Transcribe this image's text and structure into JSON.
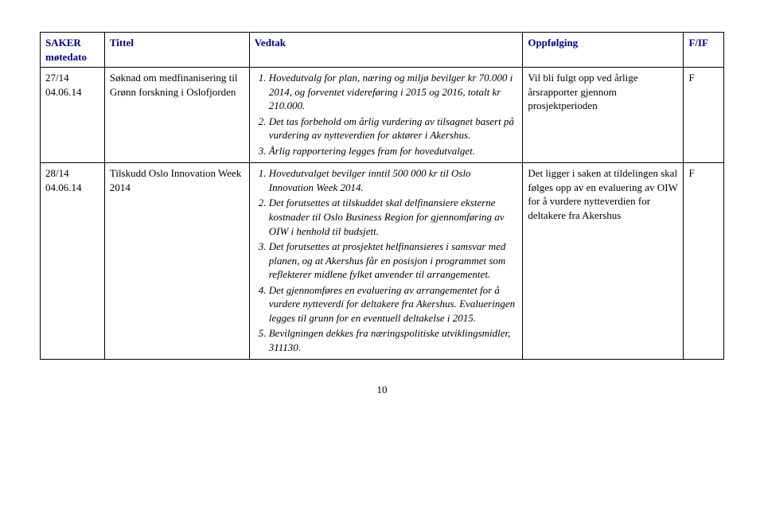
{
  "headers": {
    "saker": "SAKER møtedato",
    "tittel": "Tittel",
    "vedtak": "Vedtak",
    "oppfolging": "Oppfølging",
    "fif": "F/IF"
  },
  "rows": [
    {
      "saker": "27/14 04.06.14",
      "tittel": "Søknad om medfinanisering til Grønn forskning i Oslofjorden",
      "vedtak": [
        "Hovedutvalg for plan, næring og miljø bevilger kr 70.000 i 2014, og forventet videreføring i 2015 og 2016, totalt kr 210.000.",
        "Det tas forbehold om årlig vurdering av tilsagnet basert på vurdering av nytteverdien for aktører i Akershus.",
        "Årlig rapportering legges fram for hovedutvalget."
      ],
      "oppfolging": "Vil bli fulgt opp ved årlige årsrapporter gjennom prosjektperioden",
      "fif": "F"
    },
    {
      "saker": "28/14 04.06.14",
      "tittel": "Tilskudd Oslo Innovation Week 2014",
      "vedtak": [
        "Hovedutvalget bevilger inntil 500 000 kr til Oslo Innovation Week 2014.",
        "Det forutsettes at tilskuddet skal delfinansiere eksterne kostnader til Oslo Business Region for gjennomføring av OIW i henhold til budsjett.",
        "Det forutsettes at prosjektet helfinansieres i samsvar med planen, og at Akershus får en posisjon i programmet som reflekterer midlene fylket anvender til arrangementet.",
        "Det gjennomføres en evaluering av arrangementet for å vurdere nytteverdi for deltakere fra Akershus. Evalueringen legges til grunn for en eventuell deltakelse i 2015.",
        "Bevilgningen dekkes fra næringspolitiske utviklingsmidler, 311130."
      ],
      "oppfolging": "Det ligger i saken at tildelingen skal følges opp av en evaluering av OIW for å vurdere nytteverdien for deltakere fra Akershus",
      "fif": "F"
    }
  ],
  "pageNumber": "10"
}
